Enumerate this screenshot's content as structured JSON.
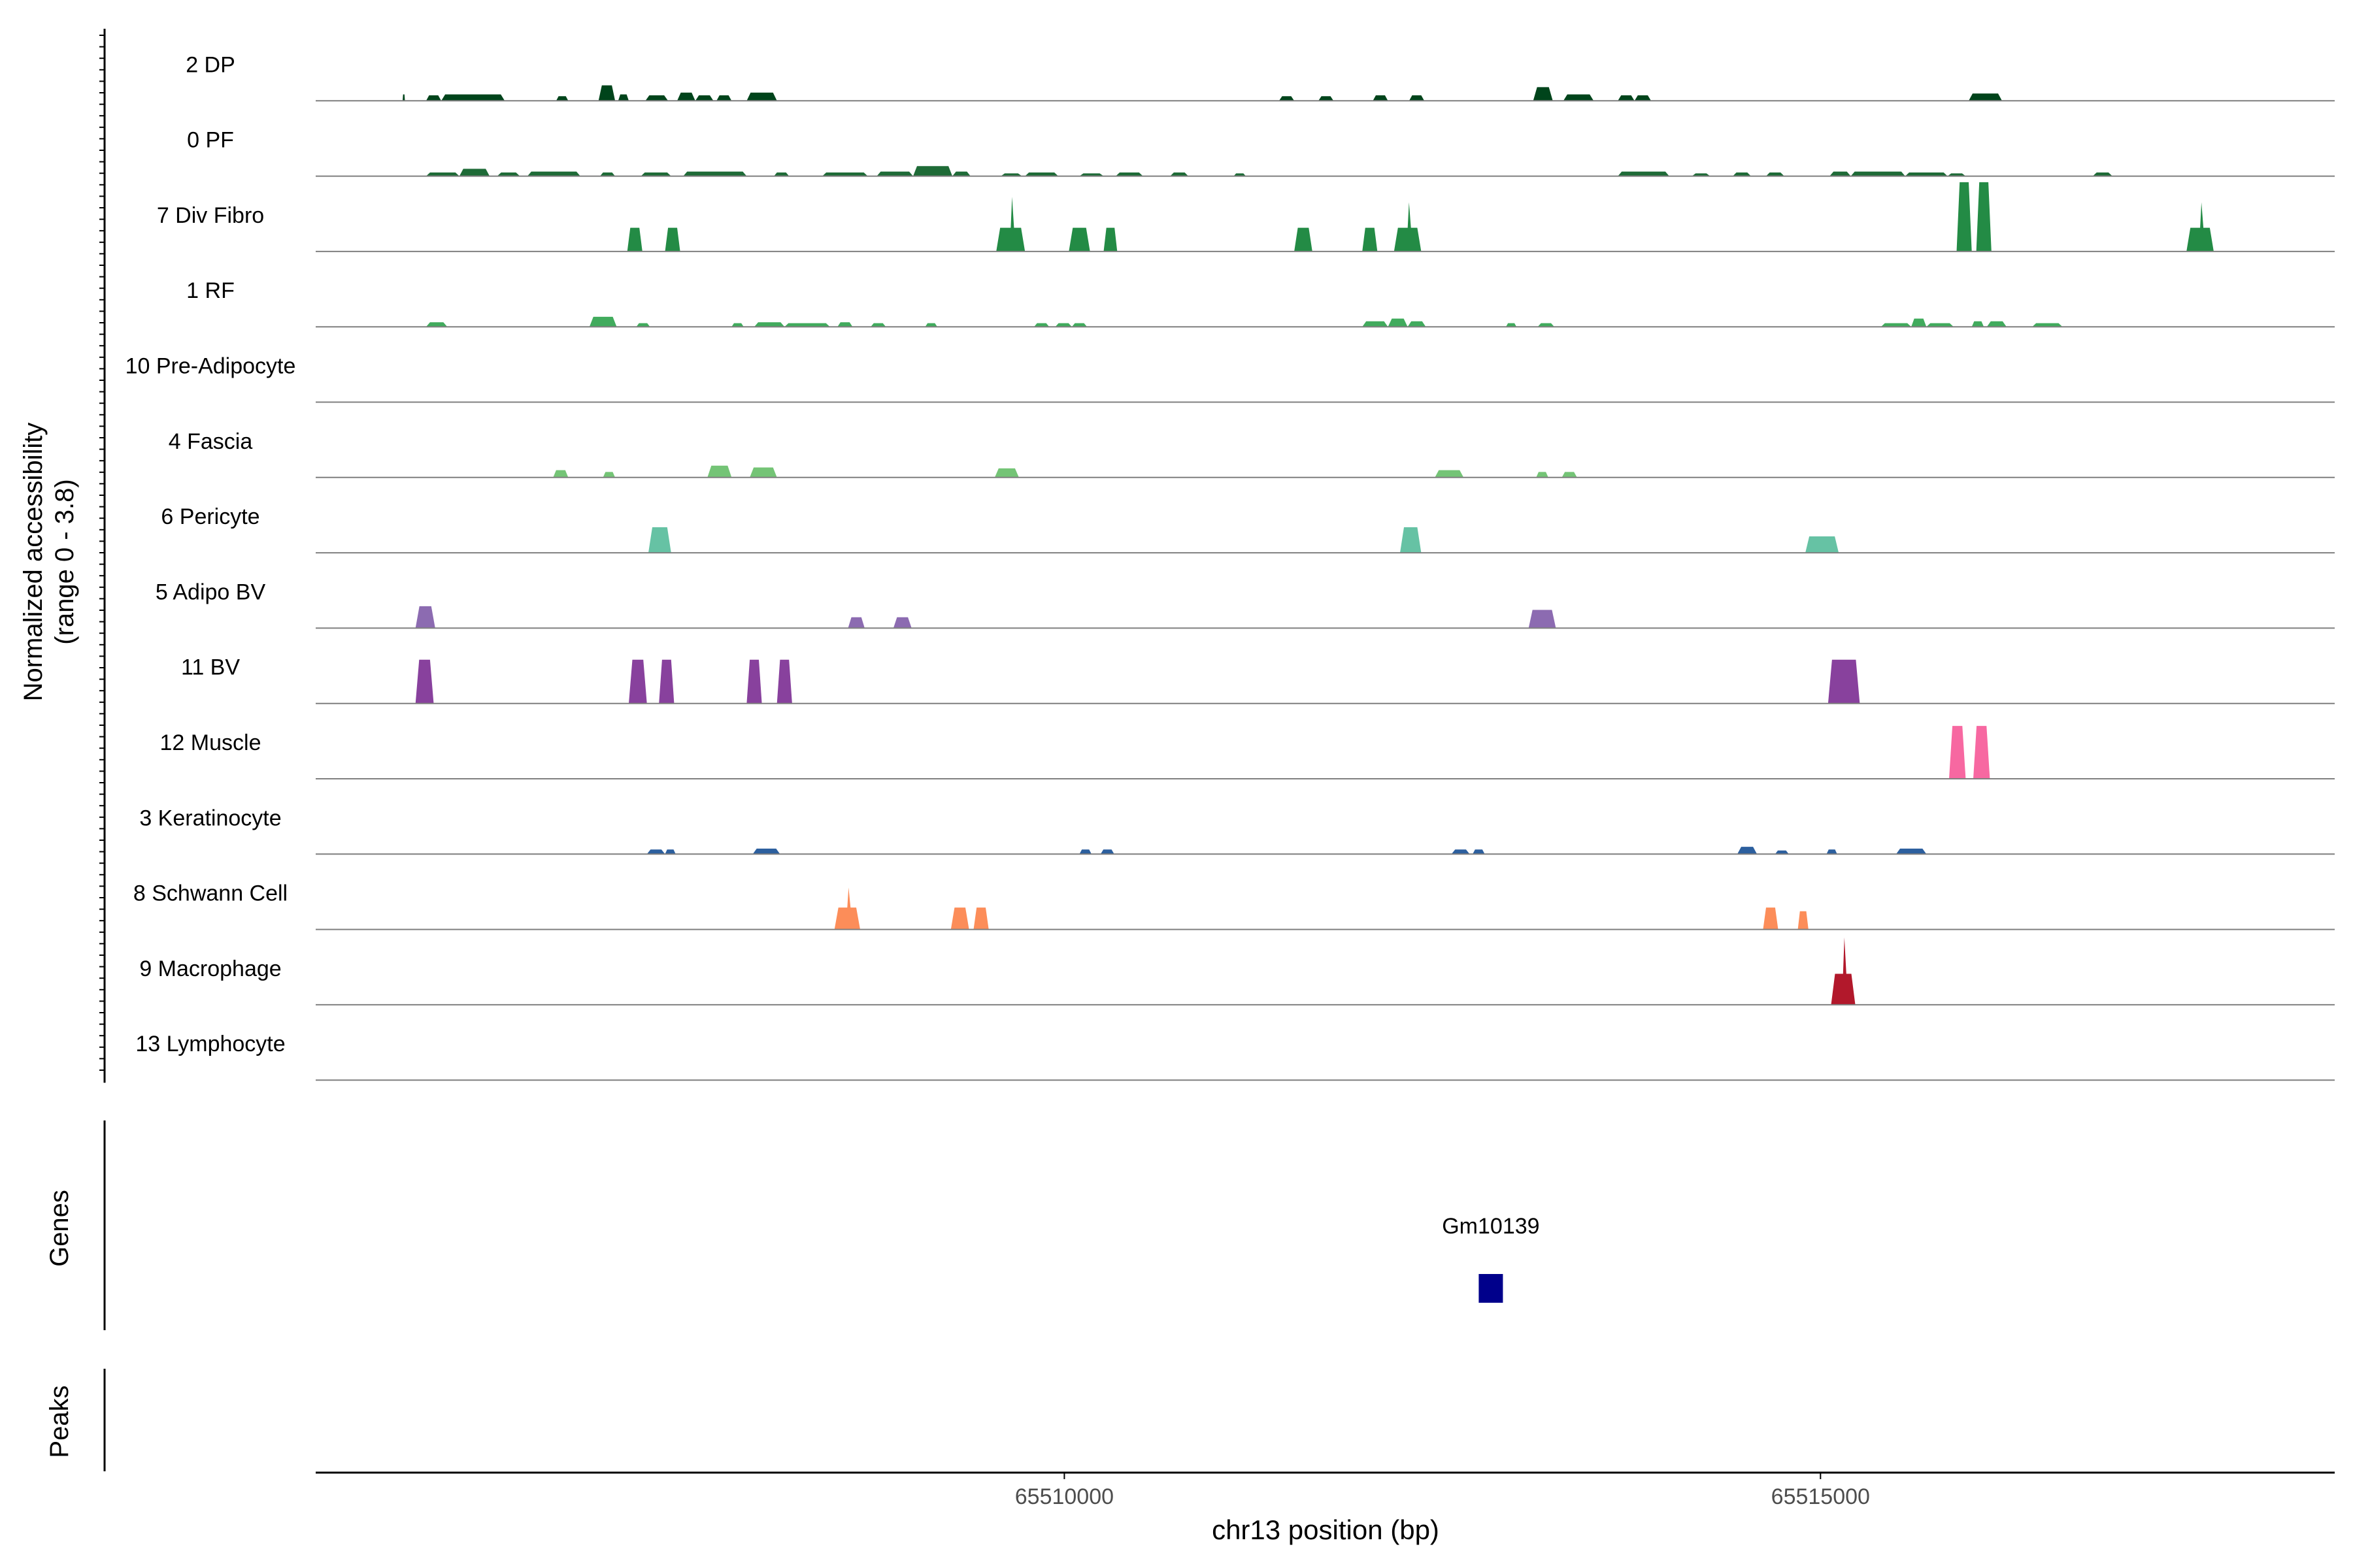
{
  "chart_data": {
    "type": "area",
    "x_axis": {
      "label": "chr13 position (bp)",
      "ticks": [
        65510000,
        65515000
      ],
      "tick_labels": [
        "65510000",
        "65515000"
      ],
      "range": [
        65505050,
        65518400
      ]
    },
    "y_axis": {
      "label_line1": "Normalized accessibility",
      "label_line2": "(range 0 - 3.8)",
      "range": [
        0,
        3.8
      ]
    },
    "tracks": [
      {
        "name": "2 DP",
        "color": "#00441b",
        "peaks": [
          [
            65505625,
            65505640,
            0.35
          ],
          [
            65505780,
            65505880,
            0.3
          ],
          [
            65505880,
            65506300,
            0.35
          ],
          [
            65506640,
            65506720,
            0.25
          ],
          [
            65506920,
            65507030,
            0.85
          ],
          [
            65507050,
            65507120,
            0.35
          ],
          [
            65507230,
            65507380,
            0.3
          ],
          [
            65507440,
            65507560,
            0.45
          ],
          [
            65507560,
            65507680,
            0.3
          ],
          [
            65507700,
            65507800,
            0.3
          ],
          [
            65507900,
            65508100,
            0.45
          ],
          [
            65511420,
            65511520,
            0.25
          ],
          [
            65511680,
            65511780,
            0.25
          ],
          [
            65512040,
            65512140,
            0.3
          ],
          [
            65512280,
            65512380,
            0.3
          ],
          [
            65513100,
            65513230,
            0.75
          ],
          [
            65513300,
            65513500,
            0.35
          ],
          [
            65513660,
            65513770,
            0.3
          ],
          [
            65513770,
            65513880,
            0.3
          ],
          [
            65515980,
            65516200,
            0.4
          ]
        ]
      },
      {
        "name": "0 PF",
        "color": "#1e6b37",
        "peaks": [
          [
            65505780,
            65506000,
            0.2
          ],
          [
            65506000,
            65506200,
            0.4
          ],
          [
            65506250,
            65506400,
            0.2
          ],
          [
            65506450,
            65506800,
            0.25
          ],
          [
            65506930,
            65507030,
            0.2
          ],
          [
            65507200,
            65507400,
            0.2
          ],
          [
            65507480,
            65507900,
            0.25
          ],
          [
            65508080,
            65508180,
            0.2
          ],
          [
            65508400,
            65508700,
            0.2
          ],
          [
            65508760,
            65509000,
            0.25
          ],
          [
            65509000,
            65509260,
            0.55
          ],
          [
            65509260,
            65509380,
            0.25
          ],
          [
            65509580,
            65509720,
            0.15
          ],
          [
            65509740,
            65509960,
            0.2
          ],
          [
            65510100,
            65510260,
            0.15
          ],
          [
            65510340,
            65510520,
            0.2
          ],
          [
            65510700,
            65510820,
            0.2
          ],
          [
            65511120,
            65511200,
            0.15
          ],
          [
            65513660,
            65514000,
            0.25
          ],
          [
            65514150,
            65514270,
            0.15
          ],
          [
            65514420,
            65514540,
            0.2
          ],
          [
            65514640,
            65514760,
            0.2
          ],
          [
            65515060,
            65515200,
            0.25
          ],
          [
            65515200,
            65515560,
            0.25
          ],
          [
            65515560,
            65515840,
            0.2
          ],
          [
            65515840,
            65515960,
            0.15
          ],
          [
            65516800,
            65516930,
            0.2
          ]
        ]
      },
      {
        "name": "7 Div Fibro",
        "color": "#238b45",
        "peaks": [
          [
            65507110,
            65507210,
            1.3
          ],
          [
            65507360,
            65507460,
            1.3
          ],
          [
            65509550,
            65509740,
            1.3,
            3.0
          ],
          [
            65510030,
            65510170,
            1.3
          ],
          [
            65510260,
            65510350,
            1.3
          ],
          [
            65511520,
            65511640,
            1.3
          ],
          [
            65511970,
            65512070,
            1.3
          ],
          [
            65512180,
            65512360,
            1.3,
            2.7
          ],
          [
            65515900,
            65516000,
            3.8
          ],
          [
            65516030,
            65516130,
            3.8
          ],
          [
            65517420,
            65517600,
            1.3,
            2.7
          ]
        ]
      },
      {
        "name": "1 RF",
        "color": "#41ab5d",
        "peaks": [
          [
            65505780,
            65505920,
            0.25
          ],
          [
            65506860,
            65507040,
            0.55
          ],
          [
            65507170,
            65507260,
            0.2
          ],
          [
            65507800,
            65507880,
            0.2
          ],
          [
            65507950,
            65508150,
            0.25
          ],
          [
            65508150,
            65508450,
            0.2
          ],
          [
            65508500,
            65508600,
            0.25
          ],
          [
            65508720,
            65508820,
            0.2
          ],
          [
            65509080,
            65509160,
            0.2
          ],
          [
            65509800,
            65509900,
            0.2
          ],
          [
            65509940,
            65510050,
            0.2
          ],
          [
            65510050,
            65510150,
            0.2
          ],
          [
            65511970,
            65512140,
            0.3
          ],
          [
            65512140,
            65512270,
            0.45
          ],
          [
            65512270,
            65512390,
            0.3
          ],
          [
            65512920,
            65512990,
            0.2
          ],
          [
            65513130,
            65513240,
            0.2
          ],
          [
            65515400,
            65515600,
            0.2
          ],
          [
            65515600,
            65515700,
            0.45
          ],
          [
            65515700,
            65515880,
            0.2
          ],
          [
            65516000,
            65516080,
            0.3
          ],
          [
            65516100,
            65516230,
            0.3
          ],
          [
            65516400,
            65516600,
            0.2
          ]
        ]
      },
      {
        "name": "10 Pre-Adipocyte",
        "color": "#74c476",
        "peaks": []
      },
      {
        "name": "4 Fascia",
        "color": "#74c476",
        "peaks": [
          [
            65506620,
            65506720,
            0.4
          ],
          [
            65506950,
            65507030,
            0.3
          ],
          [
            65507640,
            65507800,
            0.65
          ],
          [
            65507920,
            65508100,
            0.55
          ],
          [
            65509540,
            65509700,
            0.5
          ],
          [
            65512450,
            65512640,
            0.4
          ],
          [
            65513120,
            65513200,
            0.3
          ],
          [
            65513290,
            65513390,
            0.3
          ]
        ]
      },
      {
        "name": "6 Pericyte",
        "color": "#66c2a4",
        "peaks": [
          [
            65507250,
            65507400,
            1.4
          ],
          [
            65512220,
            65512360,
            1.4
          ],
          [
            65514900,
            65515120,
            0.9
          ]
        ]
      },
      {
        "name": "5 Adipo BV",
        "color": "#8c6bb1",
        "peaks": [
          [
            65505710,
            65505840,
            1.2
          ],
          [
            65508570,
            65508680,
            0.6
          ],
          [
            65508870,
            65508990,
            0.6
          ],
          [
            65513070,
            65513250,
            1.0
          ]
        ]
      },
      {
        "name": "11 BV",
        "color": "#88419d",
        "peaks": [
          [
            65505710,
            65505830,
            2.4
          ],
          [
            65507120,
            65507240,
            2.4
          ],
          [
            65507320,
            65507420,
            2.4
          ],
          [
            65507900,
            65508000,
            2.4
          ],
          [
            65508100,
            65508200,
            2.4
          ],
          [
            65515050,
            65515260,
            2.4
          ]
        ]
      },
      {
        "name": "12 Muscle",
        "color": "#f768a1",
        "peaks": [
          [
            65515850,
            65515960,
            2.9
          ],
          [
            65516010,
            65516120,
            2.9
          ]
        ]
      },
      {
        "name": "3 Keratinocyte",
        "color": "#2c5f9e",
        "peaks": [
          [
            65507240,
            65507360,
            0.25
          ],
          [
            65507360,
            65507430,
            0.25
          ],
          [
            65507940,
            65508120,
            0.3
          ],
          [
            65510100,
            65510180,
            0.25
          ],
          [
            65510240,
            65510330,
            0.25
          ],
          [
            65512560,
            65512680,
            0.25
          ],
          [
            65512700,
            65512780,
            0.25
          ],
          [
            65514450,
            65514580,
            0.4
          ],
          [
            65514700,
            65514790,
            0.2
          ],
          [
            65515040,
            65515110,
            0.25
          ],
          [
            65515500,
            65515700,
            0.3
          ]
        ]
      },
      {
        "name": "8 Schwann Cell",
        "color": "#fc8d59",
        "peaks": [
          [
            65508480,
            65508650,
            1.2,
            2.3
          ],
          [
            65509250,
            65509370,
            1.2
          ],
          [
            65509400,
            65509500,
            1.2
          ],
          [
            65514620,
            65514720,
            1.2
          ],
          [
            65514850,
            65514920,
            1.0
          ]
        ]
      },
      {
        "name": "9 Macrophage",
        "color": "#b2182b",
        "peaks": [
          [
            65515070,
            65515230,
            1.7,
            3.7
          ]
        ]
      },
      {
        "name": "13 Lymphocyte",
        "color": "#b2182b",
        "peaks": []
      }
    ],
    "genes": [
      {
        "name": "Gm10139",
        "start": 65512740,
        "end": 65512900,
        "color": "#00008b"
      }
    ],
    "panel_labels": {
      "genes": "Genes",
      "peaks": "Peaks"
    },
    "grid": false,
    "legend": "none"
  }
}
